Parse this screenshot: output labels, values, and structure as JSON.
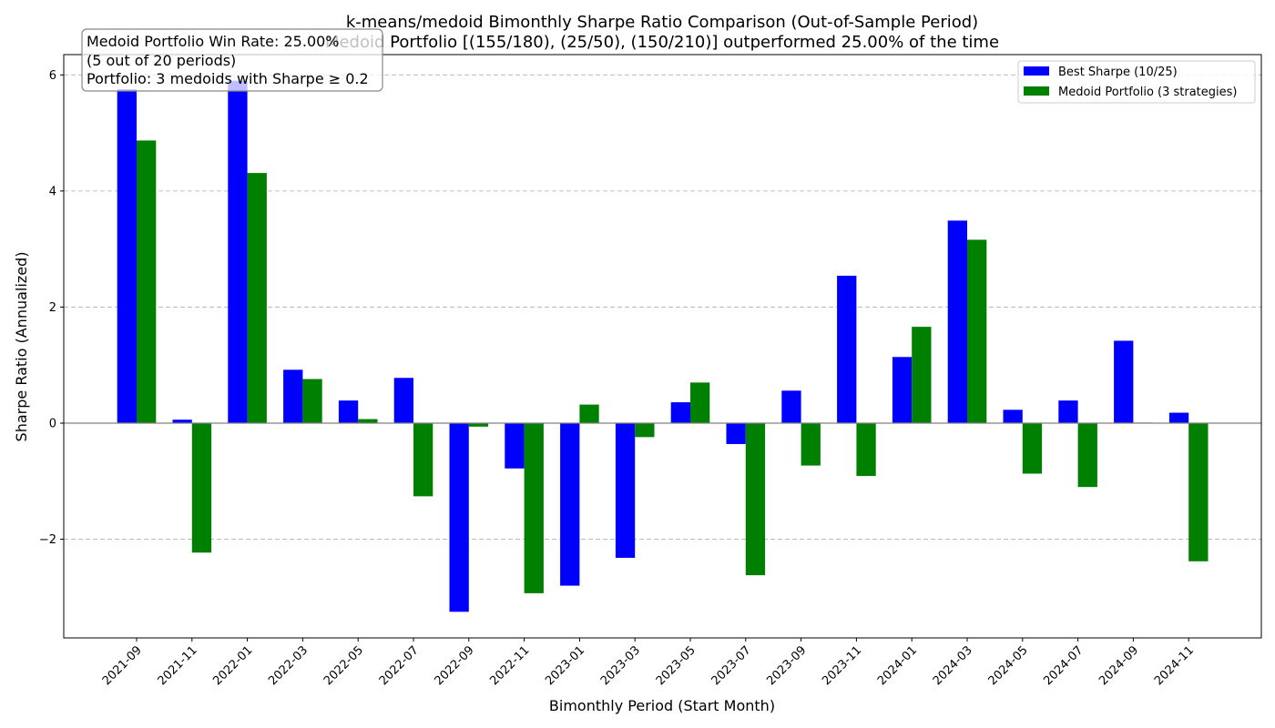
{
  "chart_data": {
    "type": "bar",
    "title": "k-means/medoid Bimonthly Sharpe Ratio Comparison (Out-of-Sample Period)",
    "subtitle": "Medoid Portfolio [(155/180), (25/50), (150/210)] outperformed 25.00% of the time",
    "xlabel": "Bimonthly Period (Start Month)",
    "ylabel": "Sharpe Ratio (Annualized)",
    "ylim": [
      -3.7,
      6.35
    ],
    "yticks": [
      -2,
      0,
      2,
      4,
      6
    ],
    "ytick_labels": [
      "−2",
      "0",
      "2",
      "4",
      "6"
    ],
    "grid": "y-dashed",
    "legend_position": "top-right",
    "categories": [
      "2021-09",
      "2021-11",
      "2022-01",
      "2022-03",
      "2022-05",
      "2022-07",
      "2022-09",
      "2022-11",
      "2023-01",
      "2023-03",
      "2023-05",
      "2023-07",
      "2023-09",
      "2023-11",
      "2024-01",
      "2024-03",
      "2024-05",
      "2024-07",
      "2024-09",
      "2024-11"
    ],
    "series": [
      {
        "name": "Best Sharpe (10/25)",
        "color": "#0000ff",
        "values": [
          5.75,
          0.06,
          5.9,
          0.92,
          0.39,
          0.78,
          -3.25,
          -0.78,
          -2.8,
          -2.32,
          0.36,
          -0.36,
          0.56,
          2.54,
          1.14,
          3.49,
          0.23,
          0.39,
          1.42,
          0.18
        ]
      },
      {
        "name": "Medoid Portfolio (3 strategies)",
        "color": "#008000",
        "values": [
          4.87,
          -2.23,
          4.31,
          0.76,
          0.07,
          -1.26,
          -0.06,
          -2.93,
          0.32,
          -0.24,
          0.7,
          -2.62,
          -0.73,
          -0.91,
          1.66,
          3.16,
          -0.87,
          -1.1,
          0.01,
          -2.38
        ]
      }
    ],
    "annotation": {
      "line1": "Medoid Portfolio Win Rate: 25.00%",
      "line2": "(5 out of 20 periods)",
      "line3": "Portfolio: 3 medoids with Sharpe ≥ 0.2"
    }
  }
}
